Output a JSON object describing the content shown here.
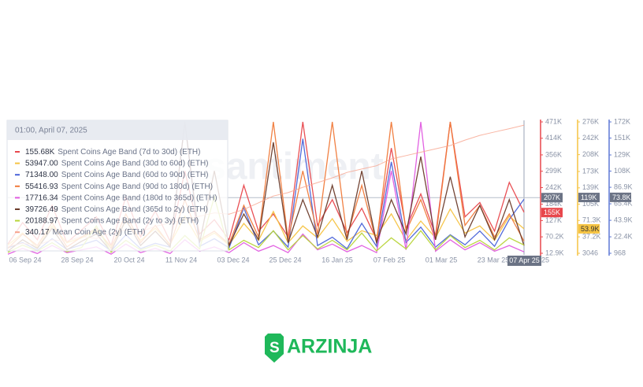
{
  "chart_data": {
    "type": "line",
    "watermark": "santiment",
    "xticks": [
      "06 Sep 24",
      "28 Sep 24",
      "20 Oct 24",
      "11 Nov 24",
      "03 Dec 24",
      "25 Dec 24",
      "16 Jan 25",
      "07 Feb 25",
      "01 Mar 25",
      "23 Mar 25",
      "25"
    ],
    "hover_x_label": "07 Apr 25",
    "tooltip_title": "01:00, April 07, 2025",
    "axes": [
      {
        "color": "#e8474c",
        "ylim": [
          12900,
          471000
        ],
        "yticks": [
          {
            "value": 471000,
            "label": "471K"
          },
          {
            "value": 414000,
            "label": "414K"
          },
          {
            "value": 356000,
            "label": "356K"
          },
          {
            "value": 299000,
            "label": "299K"
          },
          {
            "value": 242000,
            "label": "242K"
          },
          {
            "value": 184000,
            "label": "184K"
          },
          {
            "value": 127000,
            "label": "127K"
          },
          {
            "value": 70200,
            "label": "70.2K"
          },
          {
            "value": 12900,
            "label": "12.9K"
          }
        ],
        "markers": [
          {
            "value": 207000,
            "label": "207K",
            "color": "#6b7385"
          },
          {
            "value": 155000,
            "label": "155K",
            "color": "#e8474c"
          }
        ]
      },
      {
        "color": "#f5c342",
        "ylim": [
          3046,
          276000
        ],
        "yticks": [
          {
            "value": 276000,
            "label": "276K"
          },
          {
            "value": 242000,
            "label": "242K"
          },
          {
            "value": 208000,
            "label": "208K"
          },
          {
            "value": 173000,
            "label": "173K"
          },
          {
            "value": 139000,
            "label": "139K"
          },
          {
            "value": 105000,
            "label": "105K"
          },
          {
            "value": 71300,
            "label": "71.3K"
          },
          {
            "value": 37200,
            "label": "37.2K"
          },
          3046
        ],
        "markers": [
          {
            "value": 119000,
            "label": "119K",
            "color": "#6b7385"
          },
          {
            "value": 53900,
            "label": "53.9K",
            "color": "#f5c342"
          }
        ]
      },
      {
        "color": "#5e78d6",
        "ylim": [
          968,
          172000
        ],
        "yticks": [
          {
            "value": 172000,
            "label": "172K"
          },
          {
            "value": 151000,
            "label": "151K"
          },
          {
            "value": 129000,
            "label": "129K"
          },
          {
            "value": 108000,
            "label": "108K"
          },
          {
            "value": 86900,
            "label": "86.9K"
          },
          {
            "value": 65400,
            "label": "65.4K"
          },
          {
            "value": 43900,
            "label": "43.9K"
          },
          {
            "value": 22400,
            "label": "22.4K"
          },
          968
        ],
        "markers": [
          {
            "value": 73800,
            "label": "73.8K",
            "color": "#6b7385"
          }
        ]
      }
    ],
    "series": [
      {
        "name": "Spent Coins Age Band (7d to 30d) (ETH)",
        "color": "#e8474c",
        "axis": 0,
        "current": {
          "value": 155680,
          "label": "155.68K"
        },
        "values": [
          45000,
          120000,
          60000,
          180000,
          50000,
          95000,
          140000,
          40000,
          210000,
          70000,
          160000,
          55000,
          300000,
          80000,
          130000,
          60000,
          250000,
          90000,
          150000,
          70000,
          471000,
          110000,
          200000,
          85000,
          170000,
          60000,
          380000,
          100000,
          220000,
          75000,
          471000,
          140000,
          190000,
          90000,
          260000,
          155680
        ]
      },
      {
        "name": "Spent Coins Age Band (30d to 60d) (ETH)",
        "color": "#f5c342",
        "axis": 1,
        "current": {
          "value": 53947,
          "label": "53947.00"
        },
        "values": [
          20000,
          45000,
          15000,
          60000,
          25000,
          35000,
          50000,
          18000,
          70000,
          30000,
          55000,
          22000,
          80000,
          28000,
          45000,
          20000,
          65000,
          30000,
          90000,
          25000,
          60000,
          35000,
          75000,
          28000,
          50000,
          40000,
          85000,
          30000,
          70000,
          35000,
          95000,
          45000,
          60000,
          30000,
          80000,
          53947
        ]
      },
      {
        "name": "Spent Coins Age Band (60d to 90d) (ETH)",
        "color": "#4a63d8",
        "axis": 2,
        "current": {
          "value": 71348,
          "label": "71348.00"
        },
        "values": [
          8000,
          15000,
          5000,
          20000,
          6000,
          12000,
          18000,
          4000,
          25000,
          7000,
          14000,
          9000,
          172000,
          10000,
          20000,
          8000,
          60000,
          12000,
          30000,
          9000,
          150000,
          11000,
          22000,
          7000,
          40000,
          10000,
          120000,
          15000,
          35000,
          9000,
          25000,
          12000,
          30000,
          10000,
          45000,
          71348
        ]
      },
      {
        "name": "Spent Coins Age Band (90d to 180d) (ETH)",
        "color": "#f07a3a",
        "axis": 0,
        "current": {
          "value": 55416.93,
          "label": "55416.93"
        },
        "values": [
          30000,
          80000,
          40000,
          120000,
          35000,
          70000,
          100000,
          30000,
          150000,
          50000,
          110000,
          40000,
          200000,
          60000,
          90000,
          45000,
          180000,
          70000,
          471000,
          60000,
          300000,
          80000,
          471000,
          70000,
          250000,
          50000,
          471000,
          90000,
          200000,
          60000,
          471000,
          110000,
          180000,
          70000,
          150000,
          55416.93
        ]
      },
      {
        "name": "Spent Coins Age Band (180d to 365d) (ETH)",
        "color": "#e05be0",
        "axis": 0,
        "current": {
          "value": 17716.34,
          "label": "17716.34"
        },
        "values": [
          10000,
          30000,
          12000,
          40000,
          15000,
          25000,
          35000,
          10000,
          45000,
          15000,
          30000,
          12000,
          60000,
          20000,
          35000,
          15000,
          50000,
          20000,
          40000,
          15000,
          80000,
          25000,
          45000,
          18000,
          40000,
          15000,
          300000,
          25000,
          471000,
          20000,
          60000,
          25000,
          50000,
          20000,
          40000,
          17716.34
        ]
      },
      {
        "name": "Spent Coins Age Band (365d to 2y) (ETH)",
        "color": "#6b3b2a",
        "axis": 0,
        "current": {
          "value": 39726.49,
          "label": "39726.49"
        },
        "values": [
          20000,
          60000,
          30000,
          100000,
          25000,
          55000,
          80000,
          20000,
          130000,
          40000,
          90000,
          35000,
          471000,
          50000,
          300000,
          40000,
          150000,
          60000,
          400000,
          50000,
          200000,
          70000,
          250000,
          60000,
          300000,
          50000,
          200000,
          80000,
          350000,
          60000,
          280000,
          70000,
          180000,
          60000,
          200000,
          39726.49
        ]
      },
      {
        "name": "Spent Coins Age Band (2y to 3y) (ETH)",
        "color": "#b8d43a",
        "axis": 1,
        "current": {
          "value": 20188.97,
          "label": "20188.97"
        },
        "values": [
          5000,
          20000,
          8000,
          25000,
          6000,
          15000,
          60000,
          5000,
          30000,
          10000,
          20000,
          8000,
          40000,
          12000,
          120000,
          10000,
          30000,
          15000,
          50000,
          10000,
          40000,
          12000,
          30000,
          10000,
          45000,
          8000,
          35000,
          12000,
          50000,
          10000,
          40000,
          15000,
          30000,
          10000,
          35000,
          20188.97
        ]
      },
      {
        "name": "Mean Coin Age (2y) (ETH)",
        "color": "#f7a38c",
        "ylim": [
          150,
          345
        ],
        "current": {
          "value": 340.17,
          "label": "340.17"
        },
        "values": [
          160,
          165,
          162,
          170,
          168,
          175,
          172,
          180,
          185,
          182,
          190,
          195,
          200,
          205,
          210,
          208,
          215,
          225,
          235,
          240,
          248,
          255,
          262,
          270,
          275,
          280,
          290,
          295,
          300,
          305,
          310,
          318,
          325,
          330,
          335,
          340.17
        ]
      }
    ]
  },
  "logo": {
    "text": "ARZINJA"
  }
}
